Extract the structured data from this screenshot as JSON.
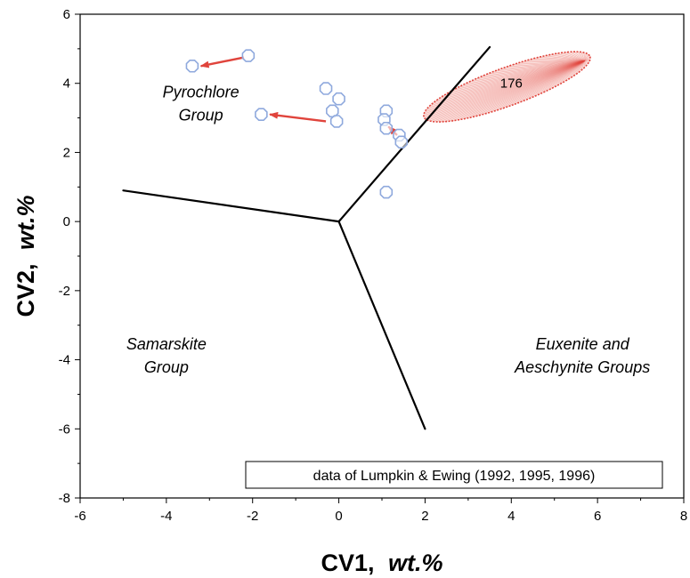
{
  "chart_data": {
    "type": "scatter",
    "xlabel": "CV1,",
    "xlabel_unit": "wt.%",
    "ylabel": "CV2,",
    "ylabel_unit": "wt.%",
    "xlim": [
      -6,
      8
    ],
    "ylim": [
      -8,
      6
    ],
    "x_ticks": [
      -6,
      -4,
      -2,
      0,
      2,
      4,
      6,
      8
    ],
    "y_ticks": [
      -8,
      -6,
      -4,
      -2,
      0,
      2,
      4,
      6
    ],
    "x_tick_labels": [
      "-6",
      "-4",
      "-2",
      "0",
      "2",
      "4",
      "6",
      "8"
    ],
    "y_tick_labels": [
      "-8",
      "-6",
      "-4",
      "-2",
      "0",
      "2",
      "4",
      "6"
    ],
    "grid": false,
    "points": [
      {
        "x": -2.1,
        "y": 4.8
      },
      {
        "x": -3.4,
        "y": 4.5
      },
      {
        "x": -0.3,
        "y": 3.85
      },
      {
        "x": 0.0,
        "y": 3.55
      },
      {
        "x": -0.15,
        "y": 3.2
      },
      {
        "x": -0.05,
        "y": 2.9
      },
      {
        "x": -1.8,
        "y": 3.1
      },
      {
        "x": 1.1,
        "y": 3.2
      },
      {
        "x": 1.05,
        "y": 2.95
      },
      {
        "x": 1.1,
        "y": 2.7
      },
      {
        "x": 1.4,
        "y": 2.5
      },
      {
        "x": 1.45,
        "y": 2.3
      },
      {
        "x": 1.1,
        "y": 0.85
      }
    ],
    "arrows": [
      {
        "from": [
          -2.2,
          4.75
        ],
        "to": [
          -3.2,
          4.5
        ]
      },
      {
        "from": [
          -0.3,
          2.9
        ],
        "to": [
          -1.6,
          3.1
        ]
      },
      {
        "from": [
          1.35,
          2.5
        ],
        "to": [
          1.15,
          2.75
        ]
      }
    ],
    "ellipse": {
      "cx": 3.9,
      "cy": 3.9,
      "rx": 2.05,
      "ry": 0.55,
      "angle_deg": 20,
      "focus": [
        5.7,
        4.65
      ]
    },
    "boundary_lines": [
      {
        "from": [
          0,
          0
        ],
        "to": [
          3.5,
          5.05
        ]
      },
      {
        "from": [
          0,
          0
        ],
        "to": [
          -5.0,
          0.9
        ]
      },
      {
        "from": [
          0,
          0
        ],
        "to": [
          2.0,
          -6.0
        ]
      }
    ],
    "annotations": [
      {
        "text": "176",
        "x": 4.0,
        "y": 4.0
      }
    ],
    "region_labels": [
      {
        "lines": [
          "Pyrochlore",
          "Group"
        ],
        "x": -3.2,
        "y": 3.6
      },
      {
        "lines": [
          "Samarskite",
          "Group"
        ],
        "x": -4.0,
        "y": -3.7
      },
      {
        "lines": [
          "Euxenite and",
          "Aeschynite Groups"
        ],
        "x": 5.65,
        "y": -3.7
      }
    ],
    "source_note": "data of Lumpkin & Ewing (1992, 1995, 1996)",
    "colors": {
      "points": "#8fa9dd",
      "arrows": "#e0443c",
      "ellipse": "#e0443c",
      "boundary": "#000000"
    }
  }
}
